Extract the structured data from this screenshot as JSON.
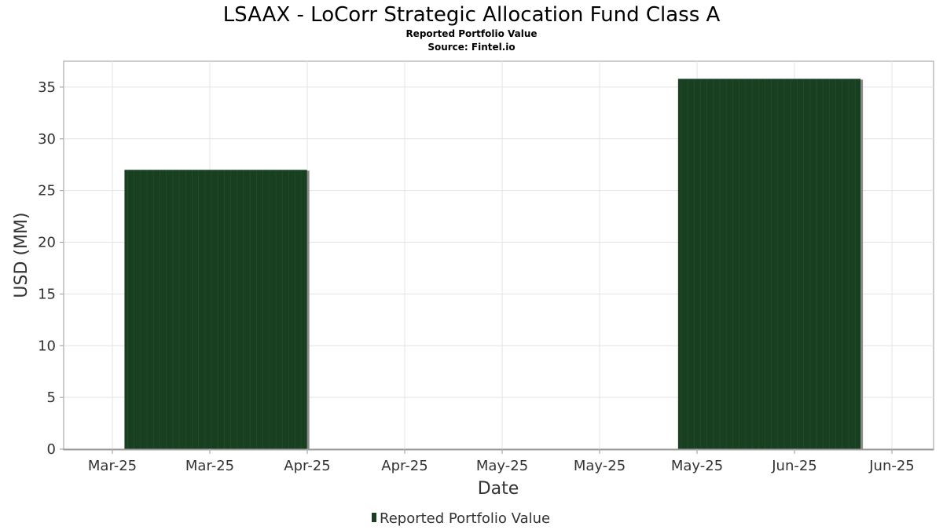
{
  "chart_data": {
    "type": "bar",
    "title": "LSAAX - LoCorr Strategic Allocation Fund Class A",
    "subtitle": "Reported Portfolio Value",
    "source": "Source: Fintel.io",
    "xlabel": "Date",
    "ylabel": "USD (MM)",
    "x_tick_labels": [
      "Mar-25",
      "Mar-25",
      "Apr-25",
      "Apr-25",
      "May-25",
      "May-25",
      "May-25",
      "Jun-25",
      "Jun-25"
    ],
    "y_ticks": [
      0,
      5,
      10,
      15,
      20,
      25,
      30,
      35
    ],
    "ylim": [
      0,
      37.5
    ],
    "grid": true,
    "legend_position": "bottom",
    "series": [
      {
        "name": "Reported Portfolio Value",
        "color": "#173f20",
        "bars": [
          {
            "start": "2025-03-01",
            "end": "2025-03-31",
            "value": 27.0
          },
          {
            "start": "2025-05-31",
            "end": "2025-06-30",
            "value": 35.8
          }
        ]
      }
    ]
  }
}
